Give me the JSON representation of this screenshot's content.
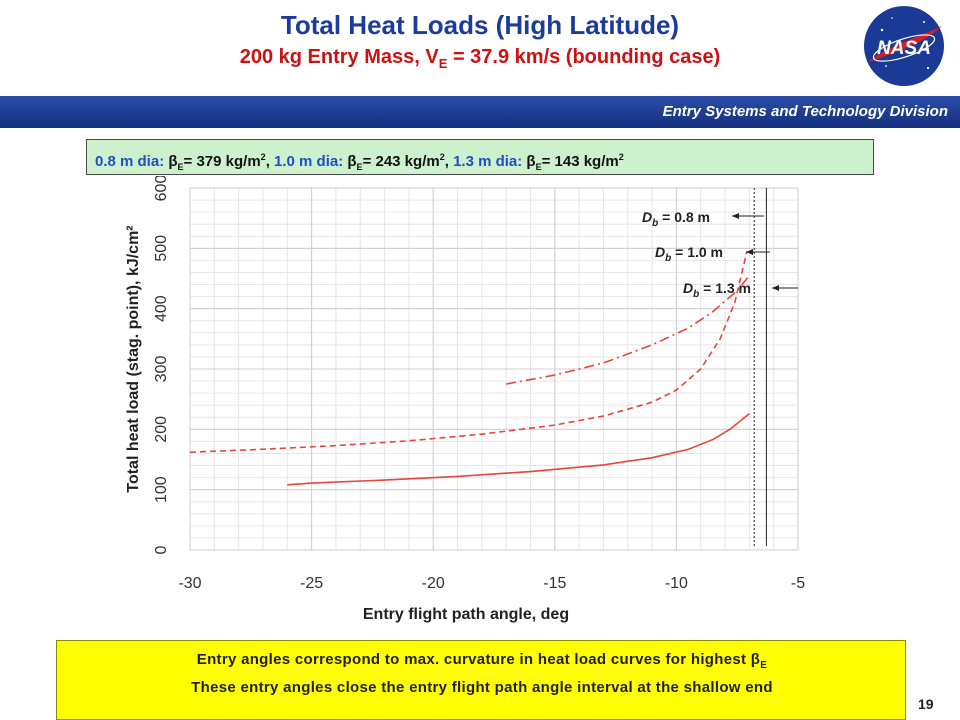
{
  "header": {
    "title": "Total Heat Loads (High Latitude)",
    "subtitle_main": "200 kg Entry Mass, V",
    "subtitle_sub": "E",
    "subtitle_rest": " = 37.9 km/s (bounding case)",
    "division": "Entry Systems and Technology Division",
    "logo_text": "NASA"
  },
  "info": {
    "d1": "0.8 m dia: ",
    "b1": "= 379 kg/m",
    "d2": "1.0 m dia: ",
    "b2": "= 243 kg/m",
    "d3": "1.3 m dia: ",
    "b3": "= 143 kg/m",
    "beta": "β",
    "sub": "E",
    "sup": "2",
    "sep": ", "
  },
  "note": {
    "line1_pre": "Entry angles correspond to max. curvature in heat load curves for highest ",
    "line1_beta": "β",
    "line1_sub": "E",
    "line2": "These entry angles close the entry flight path angle interval at the shallow end"
  },
  "page_number": "19",
  "colors": {
    "curve": "#e8443a",
    "title_blue": "#1c3c9c",
    "subtitle_red": "#cc1111",
    "info_green": "#cdf0cd",
    "note_yellow": "#ffff00"
  },
  "chart_data": {
    "type": "line",
    "xlabel": "Entry flight path angle, deg",
    "ylabel": "Total heat load (stag. point), kJ/cm²",
    "xlim": [
      -30,
      -5
    ],
    "ylim": [
      0,
      600
    ],
    "xticks": [
      "-30",
      "-25",
      "-20",
      "-15",
      "-10",
      "-5"
    ],
    "yticks": [
      "0",
      "100",
      "200",
      "300",
      "400",
      "500",
      "600"
    ],
    "grid": true,
    "series": [
      {
        "name": "Db = 1.3 m",
        "style": "solid",
        "x": [
          -26,
          -25,
          -22,
          -19,
          -16,
          -13,
          -11,
          -9.5,
          -8.5,
          -7.8,
          -7.0
        ],
        "y": [
          108,
          111,
          116,
          122,
          130,
          141,
          153,
          167,
          183,
          200,
          226
        ]
      },
      {
        "name": "Db = 1.0 m",
        "style": "dashed",
        "x": [
          -30,
          -27,
          -24,
          -21,
          -18,
          -15,
          -13,
          -11,
          -10,
          -9,
          -8.2,
          -7.6,
          -7.1
        ],
        "y": [
          162,
          167,
          173,
          181,
          192,
          207,
          222,
          245,
          265,
          300,
          350,
          410,
          495
        ]
      },
      {
        "name": "Db = 0.8 m",
        "style": "dashdot",
        "x": [
          -17,
          -15,
          -13,
          -11,
          -9.5,
          -8.5,
          -7.5,
          -7.0
        ],
        "y": [
          275,
          290,
          310,
          340,
          368,
          395,
          430,
          455
        ]
      }
    ],
    "vlines": [
      -6.8,
      -6.3
    ],
    "annotations": [
      {
        "label_main": "D",
        "label_sub": "b",
        "label_rest": " = 0.8 m"
      },
      {
        "label_main": "D",
        "label_sub": "b",
        "label_rest": " = 1.0 m"
      },
      {
        "label_main": "D",
        "label_sub": "b",
        "label_rest": " = 1.3 m"
      }
    ]
  }
}
